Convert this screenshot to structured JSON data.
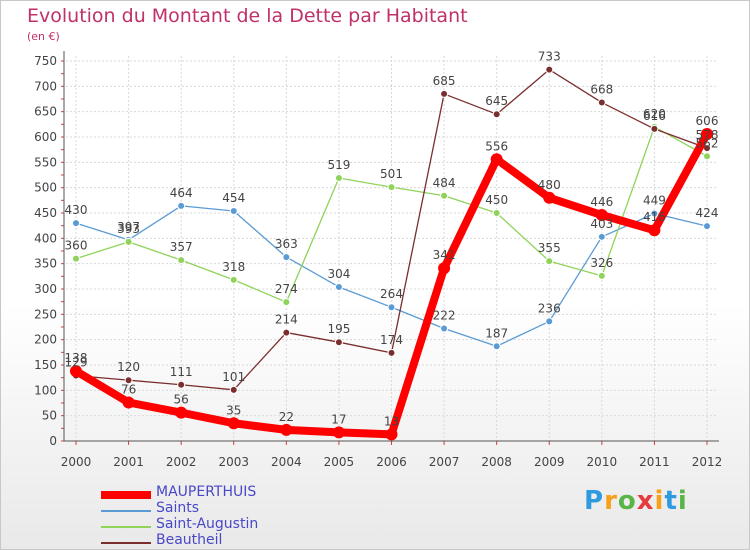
{
  "chart_data": {
    "type": "line",
    "title": "Evolution du Montant de la Dette par Habitant",
    "subtitle": "(en €)",
    "x": [
      "2000",
      "2001",
      "2002",
      "2003",
      "2004",
      "2005",
      "2006",
      "2007",
      "2008",
      "2009",
      "2010",
      "2011",
      "2012"
    ],
    "ylim": [
      0,
      750
    ],
    "yticks": [
      0,
      50,
      100,
      150,
      200,
      250,
      300,
      350,
      400,
      450,
      500,
      550,
      600,
      650,
      700,
      750
    ],
    "grid": true,
    "legend_position": "bottom-left",
    "series": [
      {
        "name": "MAUPERTHUIS",
        "color": "#ff0000",
        "values": [
          138,
          76,
          56,
          35,
          22,
          17,
          13,
          341,
          556,
          480,
          446,
          416,
          606
        ],
        "labels": [
          "138",
          "76",
          "56",
          "35",
          "22",
          "17",
          "13",
          "341",
          "556",
          "480",
          "446",
          "416",
          "606"
        ]
      },
      {
        "name": "Saints",
        "color": "#5b9bd5",
        "values": [
          430,
          397,
          464,
          454,
          363,
          304,
          264,
          222,
          187,
          236,
          403,
          449,
          424
        ],
        "labels": [
          "430",
          "397",
          "464",
          "454",
          "363",
          "304",
          "264",
          "222",
          "187",
          "236",
          "403",
          "449",
          "424"
        ]
      },
      {
        "name": "Saint-Augustin",
        "color": "#8fd35a",
        "values": [
          360,
          393,
          357,
          318,
          274,
          519,
          501,
          484,
          450,
          355,
          326,
          620,
          562
        ],
        "labels": [
          "360",
          "393",
          "357",
          "318",
          "274",
          "519",
          "501",
          "484",
          "450",
          "355",
          "326",
          "620",
          "562"
        ]
      },
      {
        "name": "Beautheil",
        "color": "#7a2e2e",
        "values": [
          129,
          120,
          111,
          101,
          214,
          195,
          174,
          685,
          645,
          733,
          668,
          616,
          578
        ],
        "labels": [
          "129",
          "120",
          "111",
          "101",
          "214",
          "195",
          "174",
          "685",
          "645",
          "733",
          "668",
          "616",
          "578"
        ]
      }
    ]
  },
  "brand": {
    "letters": [
      "P",
      "r",
      "o",
      "x",
      "i",
      "t",
      "i"
    ],
    "colors": [
      "#2e9be0",
      "#f7a11a",
      "#5ab548",
      "#e63c3c",
      "#f7a11a",
      "#2e9be0",
      "#5ab548"
    ]
  }
}
